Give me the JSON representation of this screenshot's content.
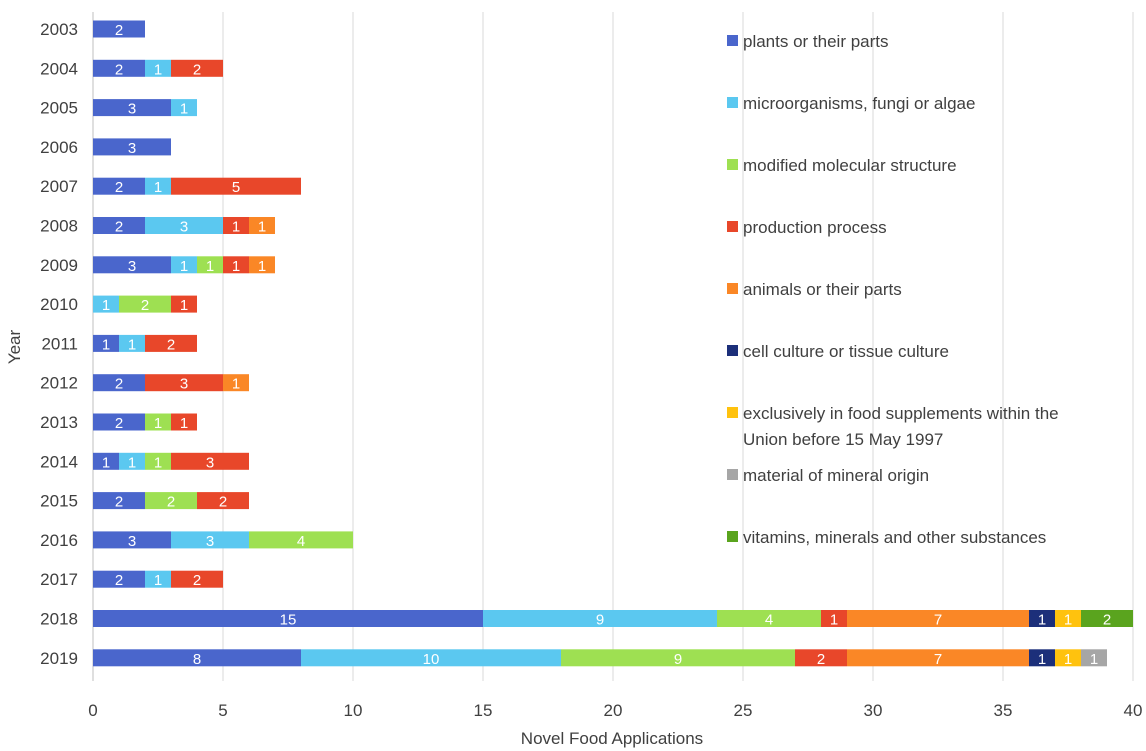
{
  "chart_data": {
    "type": "bar",
    "orientation": "horizontal",
    "stacked": true,
    "xlabel": "Novel Food Applications",
    "ylabel": "Year",
    "xlim": [
      0,
      40
    ],
    "xticks": [
      "0",
      "5",
      "10",
      "15",
      "20",
      "25",
      "30",
      "35",
      "40"
    ],
    "grid": "vertical",
    "legend_position": "right",
    "categories": [
      "2003",
      "2004",
      "2005",
      "2006",
      "2007",
      "2008",
      "2009",
      "2010",
      "2011",
      "2012",
      "2013",
      "2014",
      "2015",
      "2016",
      "2017",
      "2018",
      "2019"
    ],
    "series": [
      {
        "name": "plants or their parts",
        "color": "#4a66cc",
        "values": [
          2,
          2,
          3,
          3,
          2,
          2,
          3,
          0,
          1,
          2,
          2,
          1,
          2,
          3,
          2,
          15,
          8
        ]
      },
      {
        "name": "microorganisms, fungi or algae",
        "color": "#5bc8f0",
        "values": [
          0,
          1,
          1,
          0,
          1,
          3,
          1,
          1,
          1,
          0,
          0,
          1,
          0,
          3,
          1,
          9,
          10
        ]
      },
      {
        "name": "modified molecular structure",
        "color": "#9ee052",
        "values": [
          0,
          0,
          0,
          0,
          0,
          0,
          1,
          2,
          0,
          0,
          1,
          1,
          2,
          4,
          0,
          4,
          9
        ]
      },
      {
        "name": "production process",
        "color": "#e8472a",
        "values": [
          0,
          2,
          0,
          0,
          5,
          1,
          1,
          1,
          2,
          3,
          1,
          3,
          2,
          0,
          2,
          1,
          2
        ]
      },
      {
        "name": "animals or their parts",
        "color": "#fa8726",
        "values": [
          0,
          0,
          0,
          0,
          0,
          1,
          1,
          0,
          0,
          1,
          0,
          0,
          0,
          0,
          0,
          7,
          7
        ]
      },
      {
        "name": "cell culture or tissue culture",
        "color": "#1c2f7a",
        "values": [
          0,
          0,
          0,
          0,
          0,
          0,
          0,
          0,
          0,
          0,
          0,
          0,
          0,
          0,
          0,
          1,
          1
        ]
      },
      {
        "name": "exclusively in food supplements within the Union before 15 May 1997",
        "color": "#ffc20e",
        "legend_lines": [
          "exclusively in food supplements within the",
          "Union before 15 May 1997"
        ],
        "values": [
          0,
          0,
          0,
          0,
          0,
          0,
          0,
          0,
          0,
          0,
          0,
          0,
          0,
          0,
          0,
          1,
          1
        ]
      },
      {
        "name": "material of mineral origin",
        "color": "#a6a6a6",
        "values": [
          0,
          0,
          0,
          0,
          0,
          0,
          0,
          0,
          0,
          0,
          0,
          0,
          0,
          0,
          0,
          0,
          1
        ]
      },
      {
        "name": "vitamins, minerals and other substances",
        "color": "#5aa41e",
        "values": [
          0,
          0,
          0,
          0,
          0,
          0,
          0,
          0,
          0,
          0,
          0,
          0,
          0,
          0,
          0,
          2,
          0
        ]
      }
    ]
  }
}
